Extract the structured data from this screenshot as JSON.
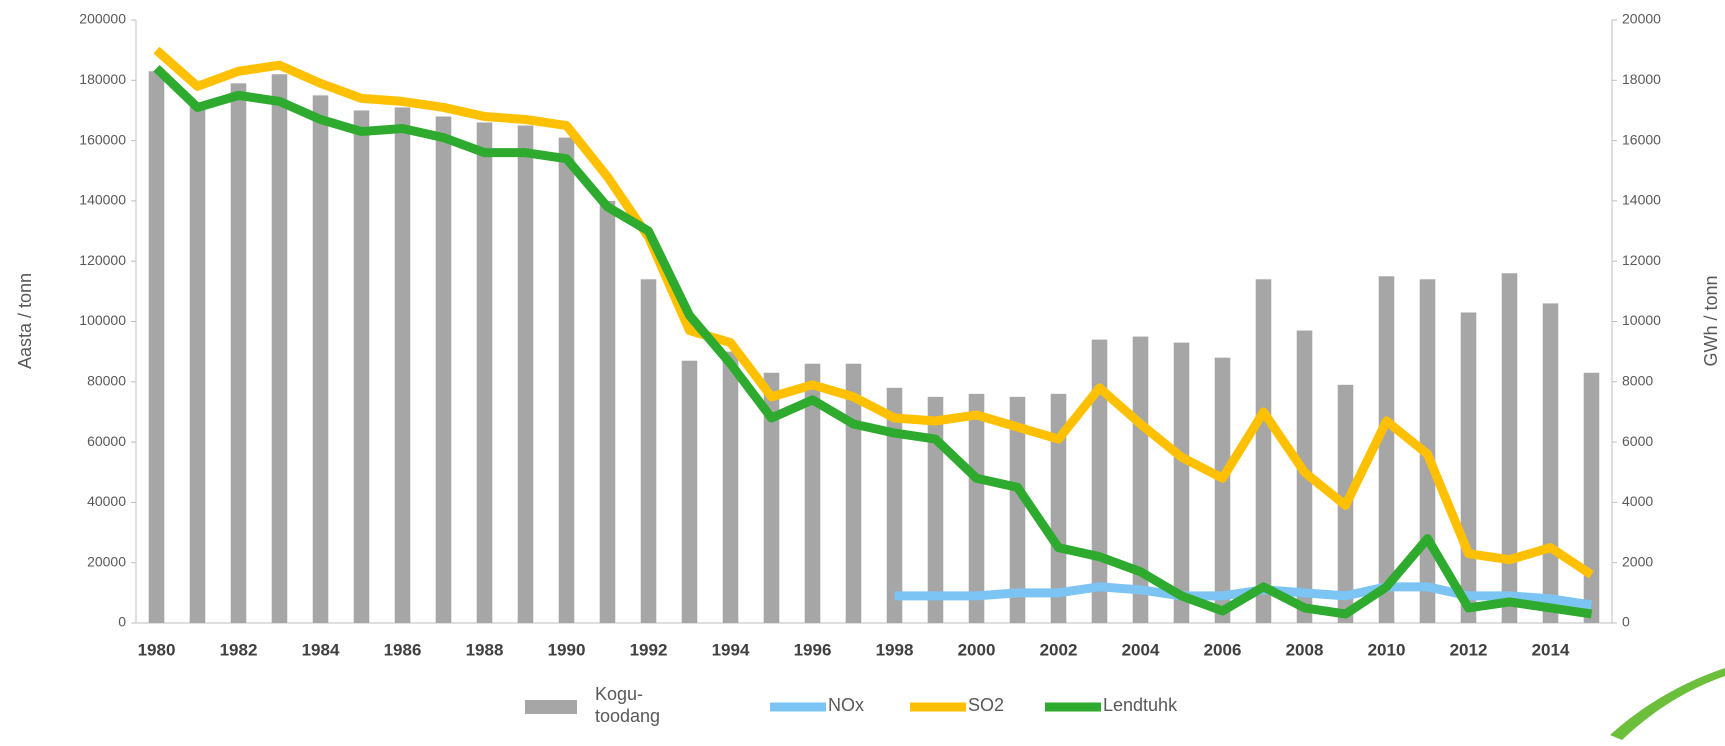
{
  "chart_data": {
    "type": "bar-line",
    "categories": [
      "1980",
      null,
      "1982",
      null,
      "1984",
      null,
      "1986",
      null,
      "1988",
      null,
      "1990",
      null,
      "1992",
      null,
      "1994",
      null,
      "1996",
      null,
      "1998",
      null,
      "2000",
      null,
      "2002",
      null,
      "2004",
      null,
      "2006",
      null,
      "2008",
      null,
      "2010",
      null,
      "2012",
      null,
      "2014",
      null
    ],
    "ylabel": "Aasta / tonn",
    "y2label": "GWh / tonn",
    "ylim": [
      0,
      200000
    ],
    "yticks": [
      0,
      20000,
      40000,
      60000,
      80000,
      100000,
      120000,
      140000,
      160000,
      180000,
      200000
    ],
    "y2lim": [
      0,
      20000
    ],
    "y2ticks": [
      0,
      2000,
      4000,
      6000,
      8000,
      10000,
      12000,
      14000,
      16000,
      18000,
      20000
    ],
    "series": [
      {
        "name": "Kogu-\ntoodang",
        "type": "bar",
        "axis": "y2",
        "color": "#a6a6a6",
        "values": [
          18300,
          17200,
          17900,
          18200,
          17500,
          17000,
          17100,
          16800,
          16600,
          16500,
          16100,
          14000,
          11400,
          8700,
          9000,
          8300,
          8600,
          8600,
          7800,
          7500,
          7600,
          7500,
          7600,
          9400,
          9500,
          9300,
          8800,
          11400,
          9700,
          7900,
          11500,
          11400,
          10300,
          11600,
          10600,
          8300
        ]
      },
      {
        "name": "NOx",
        "type": "line",
        "color": "#7cc4f4",
        "values": [
          null,
          null,
          null,
          null,
          null,
          null,
          null,
          null,
          null,
          null,
          null,
          null,
          null,
          null,
          null,
          null,
          null,
          null,
          9000,
          9000,
          9000,
          10000,
          10000,
          12000,
          11000,
          9000,
          9000,
          11000,
          10000,
          9000,
          12000,
          12000,
          9000,
          9000,
          8000,
          6000
        ]
      },
      {
        "name": "SO2",
        "type": "line",
        "color": "#ffc000",
        "values": [
          190000,
          178000,
          183000,
          185000,
          179000,
          174000,
          173000,
          171000,
          168000,
          167000,
          165000,
          148000,
          128000,
          97000,
          93000,
          75000,
          79000,
          75000,
          68000,
          67000,
          69000,
          65000,
          61000,
          78000,
          66000,
          55000,
          48000,
          70000,
          50000,
          39000,
          67000,
          56000,
          23000,
          21000,
          25000,
          16000
        ]
      },
      {
        "name": "Lendtuhk",
        "type": "line",
        "color": "#2eaa2e",
        "values": [
          184000,
          171000,
          175000,
          173000,
          167000,
          163000,
          164000,
          161000,
          156000,
          156000,
          154000,
          138000,
          130000,
          102000,
          86000,
          68000,
          74000,
          66000,
          63000,
          61000,
          48000,
          45000,
          25000,
          22000,
          17000,
          9000,
          4000,
          12000,
          5000,
          3000,
          12000,
          28000,
          5000,
          7000,
          5000,
          3000
        ]
      }
    ]
  }
}
